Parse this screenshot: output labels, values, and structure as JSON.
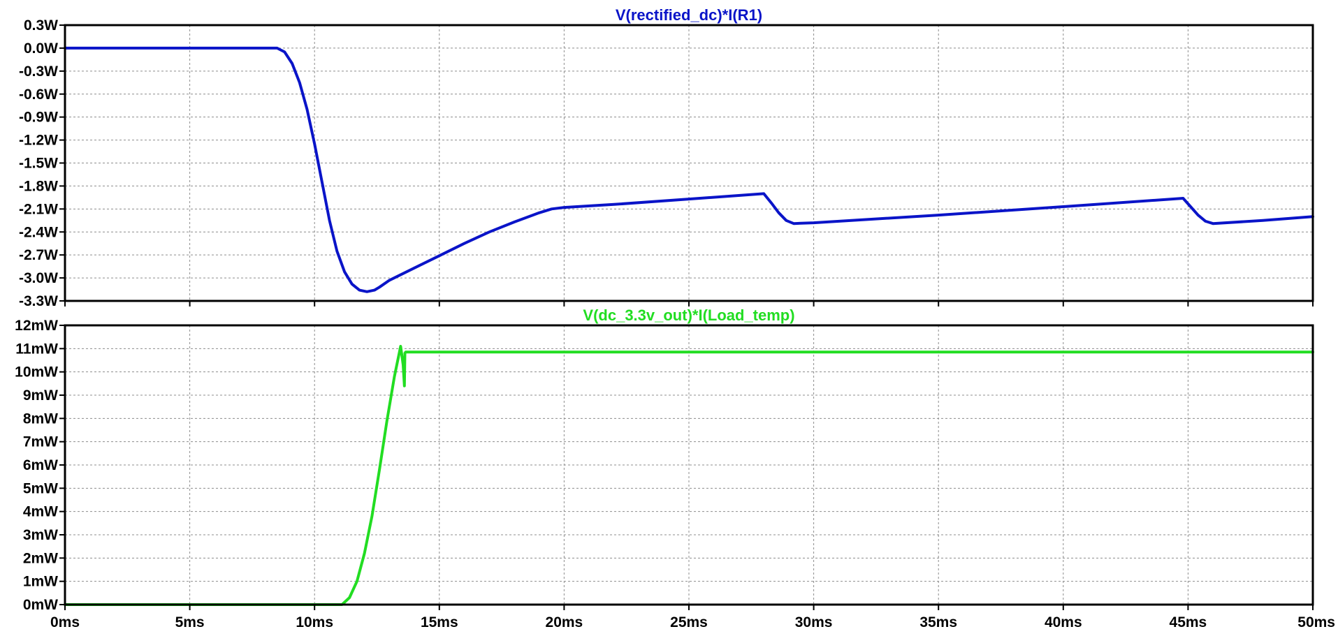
{
  "chart_data": [
    {
      "type": "line",
      "title": "V(rectified_dc)*I(R1)",
      "title_color": "#0a14c8",
      "line_color": "#0a14c8",
      "x_unit": "ms",
      "y_unit": "W",
      "xlim": [
        0,
        50
      ],
      "ylim": [
        -3.3,
        0.3
      ],
      "grid": true,
      "x_ticks": [
        {
          "value": 0,
          "label": "0ms"
        },
        {
          "value": 5,
          "label": "5ms"
        },
        {
          "value": 10,
          "label": "10ms"
        },
        {
          "value": 15,
          "label": "15ms"
        },
        {
          "value": 20,
          "label": "20ms"
        },
        {
          "value": 25,
          "label": "25ms"
        },
        {
          "value": 30,
          "label": "30ms"
        },
        {
          "value": 35,
          "label": "35ms"
        },
        {
          "value": 40,
          "label": "40ms"
        },
        {
          "value": 45,
          "label": "45ms"
        },
        {
          "value": 50,
          "label": "50ms"
        }
      ],
      "y_ticks": [
        {
          "value": 0.3,
          "label": "0.3W"
        },
        {
          "value": 0.0,
          "label": "0.0W"
        },
        {
          "value": -0.3,
          "label": "-0.3W"
        },
        {
          "value": -0.6,
          "label": "-0.6W"
        },
        {
          "value": -0.9,
          "label": "-0.9W"
        },
        {
          "value": -1.2,
          "label": "-1.2W"
        },
        {
          "value": -1.5,
          "label": "-1.5W"
        },
        {
          "value": -1.8,
          "label": "-1.8W"
        },
        {
          "value": -2.1,
          "label": "-2.1W"
        },
        {
          "value": -2.4,
          "label": "-2.4W"
        },
        {
          "value": -2.7,
          "label": "-2.7W"
        },
        {
          "value": -3.0,
          "label": "-3.0W"
        },
        {
          "value": -3.3,
          "label": "-3.3W"
        }
      ],
      "x": [
        0,
        8.5,
        8.8,
        9.1,
        9.4,
        9.7,
        10.0,
        10.3,
        10.6,
        10.9,
        11.2,
        11.5,
        11.8,
        12.1,
        12.4,
        12.6,
        13.0,
        14.0,
        15.0,
        16.0,
        17.0,
        18.0,
        19.0,
        19.5,
        20.0,
        22.0,
        25.0,
        28.0,
        28.3,
        28.6,
        28.9,
        29.2,
        30.0,
        35.0,
        40.0,
        44.8,
        45.1,
        45.4,
        45.7,
        46.0,
        48.0,
        50.0
      ],
      "y": [
        0,
        0,
        -0.05,
        -0.2,
        -0.45,
        -0.8,
        -1.25,
        -1.75,
        -2.25,
        -2.65,
        -2.92,
        -3.08,
        -3.16,
        -3.18,
        -3.16,
        -3.12,
        -3.03,
        -2.87,
        -2.71,
        -2.55,
        -2.4,
        -2.27,
        -2.15,
        -2.1,
        -2.08,
        -2.04,
        -1.97,
        -1.9,
        -2.02,
        -2.15,
        -2.25,
        -2.29,
        -2.28,
        -2.18,
        -2.07,
        -1.96,
        -2.07,
        -2.18,
        -2.26,
        -2.29,
        -2.25,
        -2.2
      ]
    },
    {
      "type": "line",
      "title": "V(dc_3.3v_out)*I(Load_temp)",
      "title_color": "#22dd22",
      "line_color": "#22dd22",
      "x_unit": "ms",
      "y_unit": "mW",
      "xlim": [
        0,
        50
      ],
      "ylim": [
        0,
        12
      ],
      "grid": true,
      "x_ticks": [
        {
          "value": 0,
          "label": "0ms"
        },
        {
          "value": 5,
          "label": "5ms"
        },
        {
          "value": 10,
          "label": "10ms"
        },
        {
          "value": 15,
          "label": "15ms"
        },
        {
          "value": 20,
          "label": "20ms"
        },
        {
          "value": 25,
          "label": "25ms"
        },
        {
          "value": 30,
          "label": "30ms"
        },
        {
          "value": 35,
          "label": "35ms"
        },
        {
          "value": 40,
          "label": "40ms"
        },
        {
          "value": 45,
          "label": "45ms"
        },
        {
          "value": 50,
          "label": "50ms"
        }
      ],
      "y_ticks": [
        {
          "value": 12,
          "label": "12mW"
        },
        {
          "value": 11,
          "label": "11mW"
        },
        {
          "value": 10,
          "label": "10mW"
        },
        {
          "value": 9,
          "label": "9mW"
        },
        {
          "value": 8,
          "label": "8mW"
        },
        {
          "value": 7,
          "label": "7mW"
        },
        {
          "value": 6,
          "label": "6mW"
        },
        {
          "value": 5,
          "label": "5mW"
        },
        {
          "value": 4,
          "label": "4mW"
        },
        {
          "value": 3,
          "label": "3mW"
        },
        {
          "value": 2,
          "label": "2mW"
        },
        {
          "value": 1,
          "label": "1mW"
        },
        {
          "value": 0,
          "label": "0mW"
        }
      ],
      "x": [
        0,
        11.1,
        11.4,
        11.7,
        12.0,
        12.3,
        12.6,
        12.9,
        13.2,
        13.45,
        13.55,
        13.6,
        13.62,
        13.65,
        13.7,
        14.0,
        50.0
      ],
      "y": [
        0,
        0,
        0.3,
        1.0,
        2.2,
        3.8,
        5.8,
        7.9,
        9.8,
        11.1,
        10.3,
        9.4,
        10.8,
        10.85,
        10.85,
        10.85,
        10.85
      ]
    }
  ]
}
